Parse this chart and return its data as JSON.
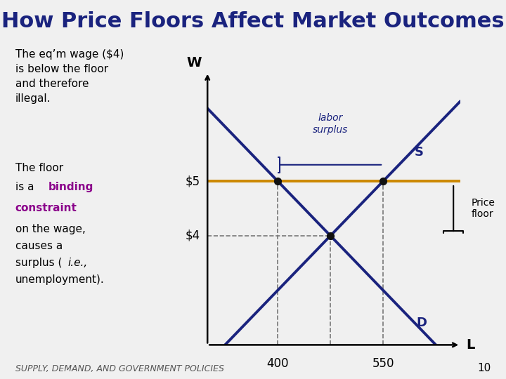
{
  "title": "How Price Floors Affect Market Outcomes",
  "title_color": "#1a237e",
  "title_fontsize": 22,
  "background_color": "#f0f0f0",
  "footer": "SUPPLY, DEMAND, AND GOVERNMENT POLICIES",
  "footer_page": "10",
  "price_floor": 5,
  "eq_price": 4,
  "eq_qty": 475,
  "floor_qty_supply": 550,
  "floor_qty_demand": 400,
  "supply_color": "#1a237e",
  "demand_color": "#1a237e",
  "floor_color": "#cc8800",
  "dot_color": "#111111",
  "dashed_color": "#777777",
  "xlabel": "L",
  "ylabel": "W",
  "x_min": 300,
  "x_max": 660,
  "y_min": 2,
  "y_max": 7,
  "label_S": "S",
  "label_D": "D",
  "binding_color": "#8b008b"
}
